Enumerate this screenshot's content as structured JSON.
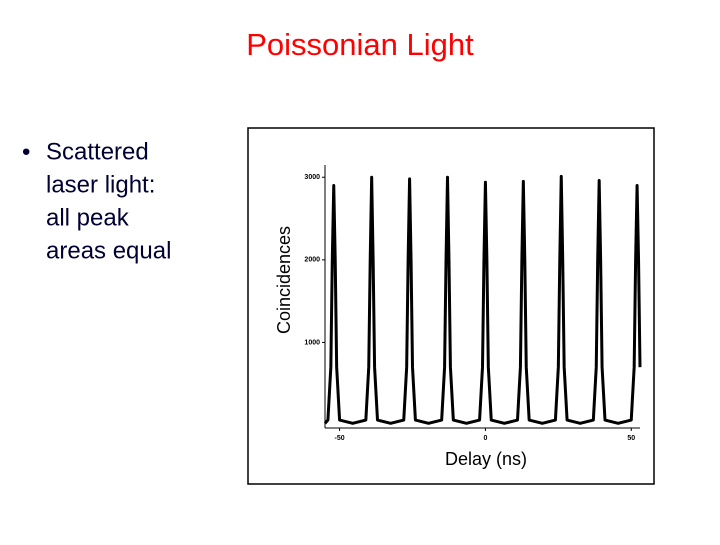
{
  "slide": {
    "title": "Poissonian Light",
    "bullet": [
      "Scattered",
      "laser light:",
      "all peak",
      "areas equal"
    ]
  },
  "chart_data": {
    "type": "line",
    "x_label": "Delay (ns)",
    "y_label": "Coincidences",
    "x": [
      -55,
      -54,
      -53,
      -52.5,
      -52,
      -51.5,
      -51,
      -50,
      -45.5,
      -41,
      -40,
      -39.5,
      -39,
      -38.5,
      -38,
      -37,
      -32.5,
      -28,
      -27,
      -26.5,
      -26,
      -25.5,
      -25,
      -24,
      -19.5,
      -15,
      -14,
      -13.5,
      -13,
      -12.5,
      -12,
      -11,
      -6.5,
      -2,
      -1,
      -0.5,
      0,
      0.5,
      1,
      2,
      6.5,
      11,
      12,
      12.5,
      13,
      13.5,
      14,
      15,
      19.5,
      24,
      25,
      25.5,
      26,
      26.5,
      27,
      28,
      32.5,
      37,
      38,
      38.5,
      39,
      39.5,
      40,
      41,
      45.5,
      50,
      51,
      51.5,
      52,
      52.5,
      53
    ],
    "series": [
      {
        "color": "#000000",
        "values": [
          20,
          60,
          700,
          2000,
          2900,
          2000,
          700,
          60,
          20,
          60,
          700,
          2000,
          3000,
          2000,
          700,
          60,
          20,
          60,
          700,
          2000,
          2980,
          2000,
          700,
          60,
          20,
          60,
          700,
          2000,
          3000,
          2000,
          700,
          60,
          20,
          60,
          700,
          2000,
          2940,
          2000,
          700,
          60,
          20,
          60,
          700,
          2000,
          2950,
          2000,
          700,
          60,
          20,
          60,
          700,
          2000,
          3010,
          2000,
          700,
          60,
          20,
          60,
          700,
          2000,
          2960,
          2000,
          700,
          60,
          20,
          60,
          700,
          2000,
          2900,
          2000,
          700
        ]
      }
    ],
    "xlim": [
      -55,
      53
    ],
    "ylim": [
      0,
      3100
    ],
    "xticks": [
      -50,
      0,
      50
    ],
    "yticks": [
      1000,
      2000,
      3000
    ]
  }
}
